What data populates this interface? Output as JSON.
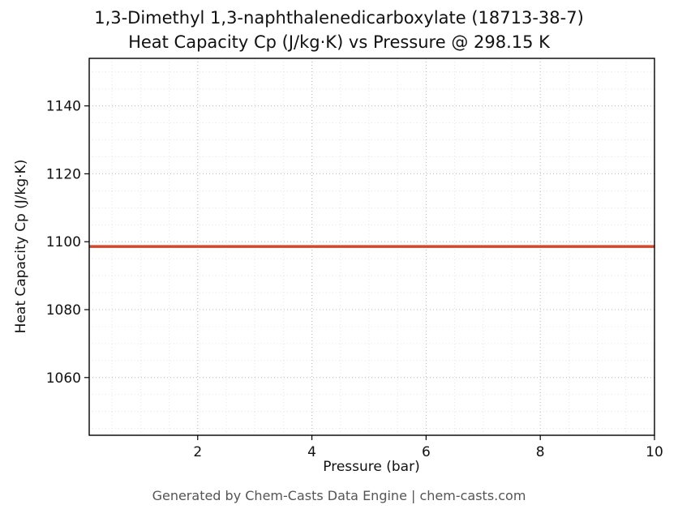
{
  "title_line1": "1,3-Dimethyl 1,3-naphthalenedicarboxylate (18713-38-7)",
  "title_line2": "Heat Capacity Cp (J/kg·K) vs Pressure @ 298.15 K",
  "footer": "Generated by Chem-Casts Data Engine | chem-casts.com",
  "chart_data": {
    "type": "line",
    "title": "1,3-Dimethyl 1,3-naphthalenedicarboxylate (18713-38-7) Heat Capacity Cp (J/kg·K) vs Pressure @ 298.15 K",
    "xlabel": "Pressure (bar)",
    "ylabel": "Heat Capacity Cp (J/kg·K)",
    "xlim": [
      0.1,
      10
    ],
    "ylim": [
      1043,
      1154
    ],
    "x_ticks": [
      2,
      4,
      6,
      8,
      10
    ],
    "y_ticks": [
      1060,
      1080,
      1100,
      1120,
      1140
    ],
    "grid": true,
    "minor_x_step": 0.5,
    "minor_y_step": 5,
    "legend": "none",
    "series": [
      {
        "name": "Heat Capacity Cp",
        "color": "#d0492b",
        "x": [
          0.1,
          2,
          4,
          6,
          8,
          10
        ],
        "y": [
          1098.6,
          1098.6,
          1098.6,
          1098.6,
          1098.6,
          1098.6
        ]
      }
    ]
  }
}
